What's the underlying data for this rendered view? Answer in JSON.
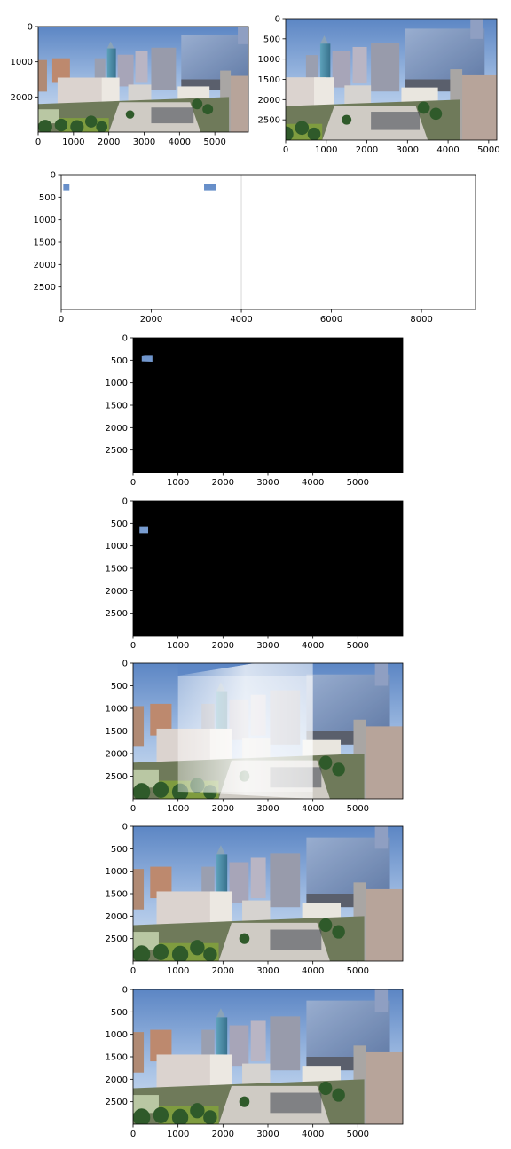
{
  "chart_data": [
    {
      "type": "image",
      "id": "left-photo",
      "extent": [
        0,
        5950,
        3000,
        0
      ],
      "xticks": [
        0,
        1000,
        2000,
        3000,
        4000,
        5000
      ],
      "yticks": [
        0,
        1000,
        2000
      ],
      "content": "photo",
      "region": [
        0,
        5950
      ]
    },
    {
      "type": "image",
      "id": "right-photo",
      "extent": [
        0,
        5200,
        3000,
        0
      ],
      "xticks": [
        0,
        1000,
        2000,
        3000,
        4000,
        5000
      ],
      "yticks": [
        0,
        500,
        1000,
        1500,
        2000,
        2500
      ],
      "content": "photo",
      "region": [
        1100,
        6300
      ]
    },
    {
      "type": "image",
      "id": "side-by-side",
      "extent": [
        0,
        9200,
        3000,
        0
      ],
      "xticks": [
        0,
        2000,
        4000,
        6000,
        8000
      ],
      "yticks": [
        0,
        500,
        1000,
        1500,
        2000,
        2500
      ],
      "content": "concat",
      "split": 4000
    },
    {
      "type": "image",
      "id": "warped-right",
      "extent": [
        0,
        6000,
        3000,
        0
      ],
      "xticks": [
        0,
        1000,
        2000,
        3000,
        4000,
        5000
      ],
      "yticks": [
        0,
        500,
        1000,
        1500,
        2000,
        2500
      ],
      "content": "warped",
      "region": [
        1000,
        6000
      ]
    },
    {
      "type": "image",
      "id": "left-on-canvas",
      "extent": [
        0,
        6000,
        3000,
        0
      ],
      "xticks": [
        0,
        1000,
        2000,
        3000,
        4000,
        5000
      ],
      "yticks": [
        0,
        500,
        1000,
        1500,
        2000,
        2500
      ],
      "content": "canvas-left",
      "region": [
        0,
        4000
      ]
    },
    {
      "type": "image",
      "id": "overexposed-overlap",
      "extent": [
        0,
        6000,
        3000,
        0
      ],
      "xticks": [
        0,
        1000,
        2000,
        3000,
        4000,
        5000
      ],
      "yticks": [
        0,
        500,
        1000,
        1500,
        2000,
        2500
      ],
      "content": "overexposed",
      "overlap": [
        1000,
        4000
      ]
    },
    {
      "type": "image",
      "id": "blended-panorama",
      "extent": [
        0,
        6000,
        3000,
        0
      ],
      "xticks": [
        0,
        1000,
        2000,
        3000,
        4000,
        5000
      ],
      "yticks": [
        0,
        500,
        1000,
        1500,
        2000,
        2500
      ],
      "content": "panorama"
    },
    {
      "type": "image",
      "id": "final-panorama",
      "extent": [
        0,
        6000,
        3000,
        0
      ],
      "xticks": [
        0,
        1000,
        2000,
        3000,
        4000,
        5000
      ],
      "yticks": [
        0,
        500,
        1000,
        1500,
        2000,
        2500
      ],
      "content": "panorama"
    }
  ]
}
